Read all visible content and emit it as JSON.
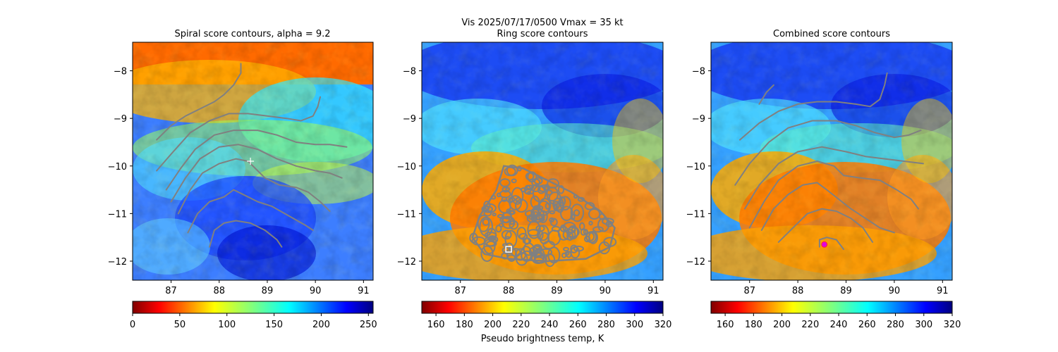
{
  "suptitle": {
    "line1": "Vis  2025/07/17/0500    Vmax = 35 kt"
  },
  "chart_data": [
    {
      "type": "heatmap",
      "title": "Spiral score contours, alpha =  9.2",
      "xlim": [
        86.2,
        91.2
      ],
      "ylim": [
        -12.4,
        -7.4
      ],
      "xticks": [
        "87",
        "88",
        "89",
        "90",
        "91"
      ],
      "yticks": [
        "−8",
        "−9",
        "−10",
        "−11",
        "−12"
      ],
      "colorbar": {
        "label": "",
        "range": [
          0,
          255
        ],
        "ticks": [
          "0",
          "50",
          "100",
          "150",
          "200",
          "250"
        ]
      },
      "markers": [
        {
          "type": "plus",
          "color": "#ffffff",
          "lon": 88.65,
          "lat": -9.9
        }
      ],
      "contours": [
        [
          [
            86.7,
            -9.45
          ],
          [
            87.0,
            -9.15
          ],
          [
            87.3,
            -8.95
          ],
          [
            87.6,
            -8.8
          ],
          [
            87.9,
            -8.65
          ],
          [
            88.1,
            -8.5
          ],
          [
            88.3,
            -8.3
          ],
          [
            88.45,
            -8.05
          ],
          [
            88.45,
            -7.85
          ]
        ],
        [
          [
            86.7,
            -10.1
          ],
          [
            87.0,
            -9.75
          ],
          [
            87.4,
            -9.3
          ],
          [
            87.8,
            -9.05
          ],
          [
            88.2,
            -8.9
          ],
          [
            88.6,
            -8.9
          ],
          [
            89.0,
            -8.95
          ],
          [
            89.4,
            -9.0
          ],
          [
            89.7,
            -9.05
          ],
          [
            89.95,
            -8.95
          ],
          [
            90.05,
            -8.75
          ],
          [
            90.1,
            -8.55
          ]
        ],
        [
          [
            86.9,
            -10.5
          ],
          [
            87.2,
            -10.05
          ],
          [
            87.5,
            -9.65
          ],
          [
            87.9,
            -9.35
          ],
          [
            88.3,
            -9.25
          ],
          [
            88.8,
            -9.25
          ],
          [
            89.2,
            -9.35
          ],
          [
            89.6,
            -9.5
          ],
          [
            90.0,
            -9.55
          ],
          [
            90.3,
            -9.55
          ],
          [
            90.65,
            -9.6
          ]
        ],
        [
          [
            87.0,
            -10.75
          ],
          [
            87.3,
            -10.25
          ],
          [
            87.6,
            -9.85
          ],
          [
            88.0,
            -9.6
          ],
          [
            88.4,
            -9.55
          ],
          [
            88.8,
            -9.65
          ],
          [
            89.2,
            -9.85
          ],
          [
            89.6,
            -10.0
          ],
          [
            90.0,
            -10.1
          ],
          [
            90.3,
            -10.15
          ],
          [
            90.55,
            -10.25
          ]
        ],
        [
          [
            87.15,
            -11.0
          ],
          [
            87.4,
            -10.5
          ],
          [
            87.65,
            -10.15
          ],
          [
            88.0,
            -9.95
          ],
          [
            88.35,
            -9.85
          ],
          [
            88.6,
            -9.9
          ],
          [
            88.8,
            -10.1
          ],
          [
            88.95,
            -10.25
          ],
          [
            89.25,
            -10.4
          ],
          [
            89.6,
            -10.45
          ],
          [
            89.85,
            -10.55
          ],
          [
            90.1,
            -10.75
          ],
          [
            90.3,
            -10.95
          ]
        ],
        [
          [
            87.35,
            -11.4
          ],
          [
            87.55,
            -11.0
          ],
          [
            87.8,
            -10.75
          ],
          [
            88.1,
            -10.65
          ],
          [
            88.3,
            -10.5
          ],
          [
            88.5,
            -10.6
          ],
          [
            88.8,
            -10.75
          ],
          [
            89.1,
            -10.85
          ],
          [
            89.45,
            -11.05
          ],
          [
            89.8,
            -11.25
          ],
          [
            89.95,
            -11.35
          ]
        ],
        [
          [
            87.8,
            -11.7
          ],
          [
            87.9,
            -11.35
          ],
          [
            88.1,
            -11.2
          ],
          [
            88.35,
            -11.15
          ],
          [
            88.65,
            -11.2
          ],
          [
            88.95,
            -11.35
          ],
          [
            89.2,
            -11.55
          ],
          [
            89.3,
            -11.7
          ]
        ]
      ]
    },
    {
      "type": "heatmap",
      "title": "Ring score contours",
      "xlim": [
        86.2,
        91.2
      ],
      "ylim": [
        -12.4,
        -7.4
      ],
      "xticks": [
        "87",
        "88",
        "89",
        "90",
        "91"
      ],
      "yticks": [
        "−8",
        "−9",
        "−10",
        "−11",
        "−12"
      ],
      "colorbar": {
        "label": "Pseudo brightness temp, K",
        "range": [
          150,
          320
        ],
        "ticks": [
          "160",
          "180",
          "200",
          "220",
          "240",
          "260",
          "280",
          "300",
          "320"
        ]
      },
      "markers": [
        {
          "type": "square",
          "color": "#ffffff",
          "lon": 88.0,
          "lat": -11.75
        }
      ],
      "ring_region": [
        [
          87.9,
          -10.0
        ],
        [
          88.3,
          -10.05
        ],
        [
          88.8,
          -10.3
        ],
        [
          89.3,
          -10.55
        ],
        [
          89.9,
          -10.95
        ],
        [
          90.2,
          -11.3
        ],
        [
          90.1,
          -11.7
        ],
        [
          89.6,
          -11.95
        ],
        [
          88.8,
          -12.0
        ],
        [
          88.0,
          -11.95
        ],
        [
          87.5,
          -11.85
        ],
        [
          87.25,
          -11.5
        ],
        [
          87.4,
          -11.05
        ],
        [
          87.75,
          -10.5
        ]
      ]
    },
    {
      "type": "heatmap",
      "title": "Combined score contours",
      "xlim": [
        86.2,
        91.2
      ],
      "ylim": [
        -12.4,
        -7.4
      ],
      "xticks": [
        "87",
        "88",
        "89",
        "90",
        "91"
      ],
      "yticks": [
        "−8",
        "−9",
        "−10",
        "−11",
        "−12"
      ],
      "colorbar": {
        "label": "",
        "range": [
          150,
          320
        ],
        "ticks": [
          "160",
          "180",
          "200",
          "220",
          "240",
          "260",
          "280",
          "300",
          "320"
        ]
      },
      "markers": [
        {
          "type": "circle",
          "color": "#e000e0",
          "lon": 88.55,
          "lat": -11.65
        }
      ],
      "contours": [
        [
          [
            87.2,
            -8.7
          ],
          [
            87.35,
            -8.45
          ],
          [
            87.5,
            -8.3
          ]
        ],
        [
          [
            86.8,
            -9.45
          ],
          [
            87.2,
            -9.1
          ],
          [
            87.6,
            -8.85
          ],
          [
            88.0,
            -8.7
          ],
          [
            88.4,
            -8.65
          ],
          [
            88.8,
            -8.65
          ],
          [
            89.2,
            -8.7
          ],
          [
            89.5,
            -8.75
          ],
          [
            89.7,
            -8.6
          ],
          [
            89.8,
            -8.3
          ],
          [
            89.85,
            -8.05
          ]
        ],
        [
          [
            86.7,
            -10.4
          ],
          [
            87.0,
            -9.95
          ],
          [
            87.4,
            -9.5
          ],
          [
            87.8,
            -9.2
          ],
          [
            88.3,
            -9.05
          ],
          [
            88.8,
            -9.05
          ],
          [
            89.2,
            -9.15
          ],
          [
            89.6,
            -9.3
          ],
          [
            90.0,
            -9.4
          ],
          [
            90.3,
            -9.35
          ],
          [
            90.55,
            -9.25
          ]
        ],
        [
          [
            86.9,
            -10.9
          ],
          [
            87.2,
            -10.4
          ],
          [
            87.6,
            -9.95
          ],
          [
            88.0,
            -9.7
          ],
          [
            88.5,
            -9.6
          ],
          [
            89.0,
            -9.7
          ],
          [
            89.4,
            -9.8
          ],
          [
            89.8,
            -9.85
          ],
          [
            90.2,
            -9.9
          ],
          [
            90.6,
            -9.95
          ]
        ],
        [
          [
            87.0,
            -11.3
          ],
          [
            87.3,
            -10.75
          ],
          [
            87.6,
            -10.3
          ],
          [
            88.0,
            -10.0
          ],
          [
            88.4,
            -9.9
          ],
          [
            88.75,
            -10.0
          ],
          [
            88.95,
            -10.2
          ],
          [
            89.3,
            -10.25
          ],
          [
            89.7,
            -10.3
          ],
          [
            90.05,
            -10.5
          ],
          [
            90.35,
            -10.7
          ],
          [
            90.5,
            -10.9
          ]
        ],
        [
          [
            87.25,
            -11.35
          ],
          [
            87.5,
            -10.9
          ],
          [
            87.8,
            -10.6
          ],
          [
            88.1,
            -10.4
          ],
          [
            88.4,
            -10.35
          ],
          [
            88.6,
            -10.5
          ],
          [
            88.85,
            -10.7
          ],
          [
            89.1,
            -10.9
          ],
          [
            89.4,
            -11.1
          ],
          [
            89.7,
            -11.3
          ],
          [
            90.0,
            -11.4
          ]
        ],
        [
          [
            87.6,
            -11.6
          ],
          [
            87.9,
            -11.3
          ],
          [
            88.2,
            -11.0
          ],
          [
            88.5,
            -10.9
          ],
          [
            88.8,
            -10.95
          ],
          [
            89.1,
            -11.1
          ],
          [
            89.35,
            -11.3
          ],
          [
            89.55,
            -11.6
          ]
        ],
        [
          [
            88.45,
            -11.7
          ],
          [
            88.45,
            -11.55
          ],
          [
            88.6,
            -11.5
          ],
          [
            88.8,
            -11.55
          ],
          [
            88.95,
            -11.75
          ]
        ]
      ]
    }
  ]
}
